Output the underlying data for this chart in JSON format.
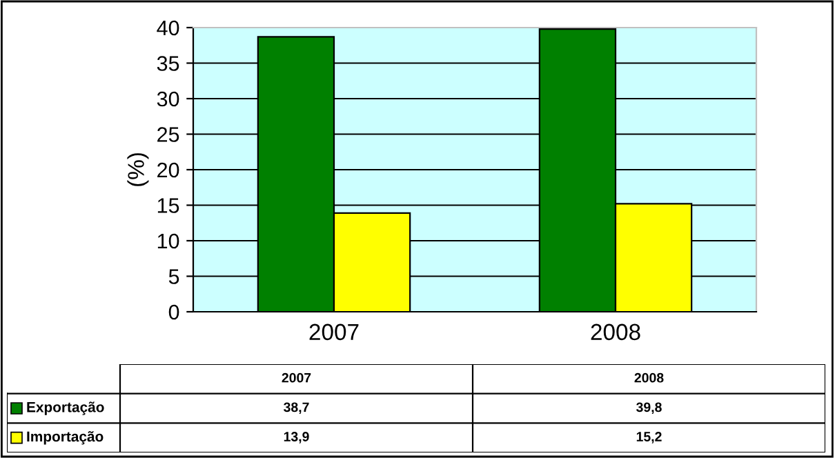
{
  "chart_data": {
    "type": "bar",
    "ylabel": "(%)",
    "categories": [
      "2007",
      "2008"
    ],
    "series": [
      {
        "name": "Exportação",
        "color": "#008000",
        "values": [
          38.7,
          39.8
        ]
      },
      {
        "name": "Importação",
        "color": "#ffff00",
        "values": [
          13.9,
          15.2
        ]
      }
    ],
    "value_labels": [
      [
        "38,7",
        "39,8"
      ],
      [
        "13,9",
        "15,2"
      ]
    ],
    "ylim": [
      0,
      40
    ],
    "yticks": [
      0,
      5,
      10,
      15,
      20,
      25,
      30,
      35,
      40
    ],
    "grid": "y",
    "legend": "bottom"
  }
}
